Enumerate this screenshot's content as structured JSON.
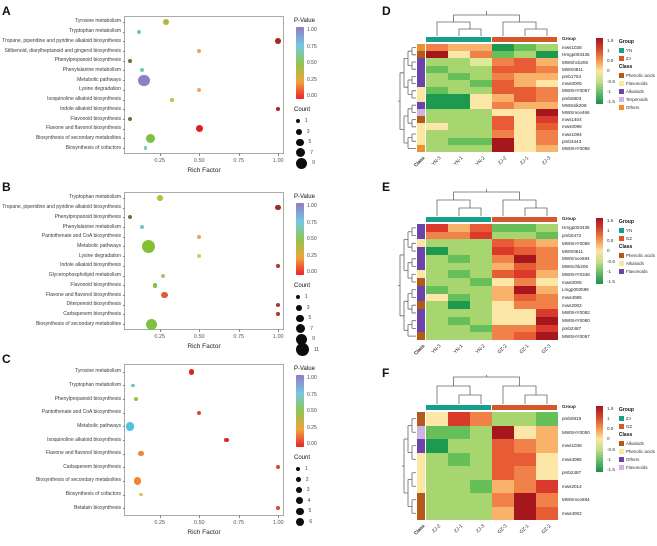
{
  "palette": {
    "dr": "#a5161d",
    "r": "#d93a2b",
    "ro": "#e85c35",
    "o": "#f08148",
    "lo": "#f9b269",
    "ly": "#fce7a8",
    "yg": "#dcea9a",
    "lg": "#a7d671",
    "g": "#67bf5a",
    "dg": "#1d9a50"
  },
  "chart_data": [
    {
      "panel": "A",
      "type": "scatter",
      "subtype": "bubble",
      "xlabel": "Rich Factor",
      "x_ticks": [
        "0.25",
        "0.50",
        "0.75",
        "1.00"
      ],
      "x_tick_values": [
        0.25,
        0.5,
        0.75,
        1.0
      ],
      "x_range": [
        0.03,
        1.03
      ],
      "legend": {
        "pvalue_title": "P-Value",
        "pvalue_ticks": [
          "1.00",
          "0.75",
          "0.50",
          "0.25",
          "0.00"
        ],
        "count_title": "Count",
        "count_items": [
          1,
          3,
          5,
          7,
          9
        ]
      },
      "rows": [
        {
          "pathway": "Tyrosine metabolism",
          "rich_factor": 0.29,
          "count": 3,
          "p_value": 0.45,
          "color": "#b9b73a"
        },
        {
          "pathway": "Tryptophan metabolism",
          "rich_factor": 0.12,
          "count": 1,
          "p_value": 0.75,
          "color": "#66c6c9"
        },
        {
          "pathway": "Tropane, piperidine and pyridine alkaloid biosynthesis",
          "rich_factor": 1.0,
          "count": 3,
          "p_value": 0.02,
          "color": "#9c2b20"
        },
        {
          "pathway": "Stilbenoid, diarylheptanoid and gingerol biosynthesis",
          "rich_factor": 0.5,
          "count": 1,
          "p_value": 0.2,
          "color": "#f0a157"
        },
        {
          "pathway": "Phenylpropanoid biosynthesis",
          "rich_factor": 0.06,
          "count": 1,
          "p_value": 0.5,
          "color": "#6f7046"
        },
        {
          "pathway": "Phenylalanine metabolism",
          "rich_factor": 0.14,
          "count": 1,
          "p_value": 0.75,
          "color": "#6fc6c6"
        },
        {
          "pathway": "Metabolic pathways",
          "rich_factor": 0.15,
          "count": 9,
          "p_value": 1.0,
          "color": "#8c80c9"
        },
        {
          "pathway": "Lysine degradation",
          "rich_factor": 0.5,
          "count": 1,
          "p_value": 0.2,
          "color": "#f2a55c"
        },
        {
          "pathway": "Isoquinoline alkaloid biosynthesis",
          "rich_factor": 0.33,
          "count": 1,
          "p_value": 0.45,
          "color": "#b9c24d"
        },
        {
          "pathway": "Indole alkaloid biosynthesis",
          "rich_factor": 1.0,
          "count": 1,
          "p_value": 0.02,
          "color": "#9c2b20"
        },
        {
          "pathway": "Flavonoid biosynthesis",
          "rich_factor": 0.06,
          "count": 1,
          "p_value": 0.5,
          "color": "#6f7046"
        },
        {
          "pathway": "Flavone and flavonol biosynthesis",
          "rich_factor": 0.5,
          "count": 5,
          "p_value": 0.01,
          "color": "#e0201f"
        },
        {
          "pathway": "Biosynthesis of secondary metabolites",
          "rich_factor": 0.19,
          "count": 7,
          "p_value": 0.5,
          "color": "#7cc142"
        },
        {
          "pathway": "Biosynthesis of cofactors",
          "rich_factor": 0.16,
          "count": 1,
          "p_value": 0.7,
          "color": "#73c9c4"
        }
      ]
    },
    {
      "panel": "B",
      "type": "scatter",
      "subtype": "bubble",
      "xlabel": "Rich Factor",
      "x_ticks": [
        "0.25",
        "0.50",
        "0.75",
        "1.00"
      ],
      "x_tick_values": [
        0.25,
        0.5,
        0.75,
        1.0
      ],
      "x_range": [
        0.03,
        1.03
      ],
      "legend": {
        "pvalue_title": "P-Value",
        "pvalue_ticks": [
          "1.00",
          "0.75",
          "0.50",
          "0.25",
          "0.00"
        ],
        "count_title": "Count",
        "count_items": [
          1,
          3,
          5,
          7,
          9,
          11
        ]
      },
      "rows": [
        {
          "pathway": "Tryptophan metabolism",
          "rich_factor": 0.25,
          "count": 3,
          "p_value": 0.45,
          "color": "#a9c43e"
        },
        {
          "pathway": "Tropane, piperidine and pyridine alkaloid biosynthesis",
          "rich_factor": 1.0,
          "count": 3,
          "p_value": 0.02,
          "color": "#9c2b20"
        },
        {
          "pathway": "Phenylpropanoid biosynthesis",
          "rich_factor": 0.06,
          "count": 1,
          "p_value": 0.5,
          "color": "#6f7046"
        },
        {
          "pathway": "Phenylalanine metabolism",
          "rich_factor": 0.14,
          "count": 1,
          "p_value": 0.75,
          "color": "#6fc6c6"
        },
        {
          "pathway": "Pantothenate and CoA biosynthesis",
          "rich_factor": 0.5,
          "count": 1,
          "p_value": 0.2,
          "color": "#f0a157"
        },
        {
          "pathway": "Metabolic pathways",
          "rich_factor": 0.18,
          "count": 11,
          "p_value": 0.4,
          "color": "#86bf33"
        },
        {
          "pathway": "Lysine degradation",
          "rich_factor": 0.5,
          "count": 1,
          "p_value": 0.5,
          "color": "#b9d16f"
        },
        {
          "pathway": "Indole alkaloid biosynthesis",
          "rich_factor": 1.0,
          "count": 1,
          "p_value": 0.02,
          "color": "#b3372a"
        },
        {
          "pathway": "Glycerophospholipid metabolism",
          "rich_factor": 0.27,
          "count": 1,
          "p_value": 0.45,
          "color": "#c0b964"
        },
        {
          "pathway": "Flavonoid biosynthesis",
          "rich_factor": 0.22,
          "count": 2,
          "p_value": 0.45,
          "color": "#7cc142"
        },
        {
          "pathway": "Flavone and flavonol biosynthesis",
          "rich_factor": 0.28,
          "count": 4,
          "p_value": 0.05,
          "color": "#e2593a"
        },
        {
          "pathway": "Diterpenoid biosynthesis",
          "rich_factor": 1.0,
          "count": 1,
          "p_value": 0.02,
          "color": "#b3372a"
        },
        {
          "pathway": "Carbapenem biosynthesis",
          "rich_factor": 1.0,
          "count": 1,
          "p_value": 0.02,
          "color": "#b3372a"
        },
        {
          "pathway": "Biosynthesis of secondary metabolites",
          "rich_factor": 0.2,
          "count": 9,
          "p_value": 0.4,
          "color": "#7cc142"
        }
      ]
    },
    {
      "panel": "C",
      "type": "scatter",
      "subtype": "bubble",
      "xlabel": "Rich Factor",
      "x_ticks": [
        "0.25",
        "0.50",
        "0.75",
        "1.00"
      ],
      "x_tick_values": [
        0.25,
        0.5,
        0.75,
        1.0
      ],
      "x_range": [
        0.03,
        1.03
      ],
      "legend": {
        "pvalue_title": "P-Value",
        "pvalue_ticks": [
          "1.00",
          "0.75",
          "0.50",
          "0.25",
          "0.00"
        ],
        "count_title": "Count",
        "count_items": [
          1,
          2,
          3,
          4,
          5,
          6
        ]
      },
      "rows": [
        {
          "pathway": "Tyrosine metabolism",
          "rich_factor": 0.45,
          "count": 3,
          "p_value": 0.02,
          "color": "#da2420"
        },
        {
          "pathway": "Tryptophan metabolism",
          "rich_factor": 0.08,
          "count": 1,
          "p_value": 0.7,
          "color": "#62c6c9"
        },
        {
          "pathway": "Phenylpropanoid biosynthesis",
          "rich_factor": 0.1,
          "count": 2,
          "p_value": 0.45,
          "color": "#9cc23c"
        },
        {
          "pathway": "Pantothenate and CoA biosynthesis",
          "rich_factor": 0.5,
          "count": 1,
          "p_value": 0.05,
          "color": "#d94a31"
        },
        {
          "pathway": "Metabolic pathways",
          "rich_factor": 0.06,
          "count": 6,
          "p_value": 0.8,
          "color": "#4ec3e0"
        },
        {
          "pathway": "Isoquinoline alkaloid biosynthesis",
          "rich_factor": 0.67,
          "count": 2,
          "p_value": 0.02,
          "color": "#d92b24"
        },
        {
          "pathway": "Flavone and flavonol biosynthesis",
          "rich_factor": 0.13,
          "count": 3,
          "p_value": 0.15,
          "color": "#ef8635"
        },
        {
          "pathway": "Carbapenem biosynthesis",
          "rich_factor": 1.0,
          "count": 1,
          "p_value": 0.05,
          "color": "#d94a31"
        },
        {
          "pathway": "Biosynthesis of secondary metabolites",
          "rich_factor": 0.11,
          "count": 5,
          "p_value": 0.15,
          "color": "#ef8635"
        },
        {
          "pathway": "Biosynthesis of cofactors",
          "rich_factor": 0.13,
          "count": 1,
          "p_value": 0.35,
          "color": "#e3c44e"
        },
        {
          "pathway": "Betalain biosynthesis",
          "rich_factor": 1.0,
          "count": 1,
          "p_value": 0.05,
          "color": "#d94a31"
        }
      ]
    },
    {
      "panel": "D",
      "type": "heatmap",
      "corner_label": "Class",
      "row_header": "Group",
      "columns": [
        "YN-3",
        "YN-1",
        "YN-2",
        "ZJ-2",
        "ZJ-1",
        "ZJ-3"
      ],
      "groups": [
        {
          "name": "YN",
          "color": "#16a08c",
          "span": 3
        },
        {
          "name": "ZJ",
          "color": "#d4582a",
          "span": 3
        }
      ],
      "scale_ticks": [
        "1.5",
        "1",
        "0.5",
        "0",
        "-0.5",
        "-1",
        "-1.5"
      ],
      "legend_group_title": "Group",
      "legend_class_title": "Class",
      "class_legend": [
        {
          "name": "Phenolic acids",
          "color": "#b3591a"
        },
        {
          "name": "Flavonoids",
          "color": "#f8e6a2"
        },
        {
          "name": "Alkaloids",
          "color": "#6a44a8"
        },
        {
          "name": "Terpenoids",
          "color": "#cdb5dd"
        },
        {
          "name": "Others",
          "color": "#ec8f2e"
        }
      ],
      "rows": [
        "mws1038",
        "Hmgp003435",
        "MWShck206",
        "MWS0811",
        "pmb1754",
        "mws0005",
        "MWSHY0067",
        "pmb0803",
        "MWSslk208",
        "MWSmce466",
        "mws1404",
        "mws0098",
        "mws1094",
        "pmb3443",
        "MWSHY0058"
      ],
      "row_classes": [
        "Others",
        "Phenolic acids",
        "Alkaloids",
        "Alkaloids",
        "Alkaloids",
        "Alkaloids",
        "Flavonoids",
        "Flavonoids",
        "Alkaloids",
        "Terpenoids",
        "Phenolic acids",
        "Flavonoids",
        "Flavonoids",
        "Flavonoids",
        "Others"
      ],
      "cells": [
        [
          "o",
          "lo",
          "lo",
          "dg",
          "g",
          "lg"
        ],
        [
          "dr",
          "ly",
          "o",
          "g",
          "lg",
          "dg"
        ],
        [
          "lg",
          "lg",
          "yg",
          "o",
          "ro",
          "lo"
        ],
        [
          "g",
          "lg",
          "lg",
          "ro",
          "ro",
          "o"
        ],
        [
          "lg",
          "g",
          "lg",
          "o",
          "lo",
          "lo"
        ],
        [
          "lg",
          "lg",
          "g",
          "ro",
          "lo",
          "ly"
        ],
        [
          "g",
          "lg",
          "lg",
          "ro",
          "ro",
          "o"
        ],
        [
          "dg",
          "dg",
          "ly",
          "lo",
          "ro",
          "o"
        ],
        [
          "dg",
          "dg",
          "ly",
          "o",
          "lo",
          "lo"
        ],
        [
          "lg",
          "lg",
          "lg",
          "ly",
          "ly",
          "dr"
        ],
        [
          "lg",
          "lg",
          "lg",
          "ro",
          "ly",
          "r"
        ],
        [
          "ly",
          "lg",
          "lg",
          "ro",
          "ly",
          "ro"
        ],
        [
          "lg",
          "lg",
          "lg",
          "o",
          "ly",
          "o"
        ],
        [
          "lg",
          "g",
          "g",
          "dr",
          "ly",
          "o"
        ],
        [
          "lg",
          "lg",
          "lg",
          "dr",
          "ly",
          "lo"
        ]
      ]
    },
    {
      "panel": "E",
      "type": "heatmap",
      "corner_label": "Class",
      "row_header": "Group",
      "columns": [
        "YN-3",
        "YN-1",
        "YN-2",
        "GZ-2",
        "GZ-1",
        "GZ-3"
      ],
      "groups": [
        {
          "name": "YN",
          "color": "#16a08c",
          "span": 3
        },
        {
          "name": "GZ",
          "color": "#d4582a",
          "span": 3
        }
      ],
      "scale_ticks": [
        "1.5",
        "1",
        "0.5",
        "0",
        "-0.5",
        "-1",
        "-1.5"
      ],
      "legend_group_title": "Group",
      "legend_class_title": "Class",
      "class_legend": [
        {
          "name": "Phenolic acids",
          "color": "#b3591a"
        },
        {
          "name": "Alkaloids",
          "color": "#f8e6a2"
        },
        {
          "name": "Flavonoids",
          "color": "#6a44a8"
        }
      ],
      "rows": [
        "Hmgp003435",
        "pmb0472",
        "MWSHY0058",
        "MWS0811",
        "MWSmce584",
        "MWSchk206",
        "MWSHY0348",
        "mws0005",
        "Lmgp002596",
        "mws4085",
        "mws2002",
        "MWSHY0082",
        "MWSHY0080",
        "pmb2487",
        "MWSHY0067"
      ],
      "row_classes": [
        "Flavonoids",
        "Flavonoids",
        "Alkaloids",
        "Flavonoids",
        "Flavonoids",
        "Flavonoids",
        "Alkaloids",
        "Phenolic acids",
        "Flavonoids",
        "Flavonoids",
        "Phenolic acids",
        "Flavonoids",
        "Flavonoids",
        "Flavonoids",
        "Phenolic acids"
      ],
      "cells": [
        [
          "r",
          "lo",
          "ro",
          "g",
          "g",
          "lg"
        ],
        [
          "o",
          "o",
          "r",
          "lg",
          "lg",
          "g"
        ],
        [
          "lg",
          "lg",
          "lg",
          "ro",
          "o",
          "lo"
        ],
        [
          "dg",
          "lg",
          "lg",
          "r",
          "ro",
          "o"
        ],
        [
          "lg",
          "g",
          "lg",
          "o",
          "dr",
          "o"
        ],
        [
          "lg",
          "lg",
          "lg",
          "lo",
          "ro",
          "o"
        ],
        [
          "lg",
          "g",
          "lg",
          "ro",
          "r",
          "lo"
        ],
        [
          "lg",
          "lg",
          "g",
          "ly",
          "o",
          "ly"
        ],
        [
          "g",
          "lg",
          "lg",
          "lo",
          "dr",
          "lo"
        ],
        [
          "ly",
          "g",
          "lg",
          "lo",
          "ro",
          "o"
        ],
        [
          "lg",
          "dg",
          "lg",
          "ly",
          "o",
          "o"
        ],
        [
          "lg",
          "lg",
          "lg",
          "ly",
          "ly",
          "r"
        ],
        [
          "lg",
          "g",
          "lg",
          "ly",
          "ly",
          "dr"
        ],
        [
          "lg",
          "lg",
          "g",
          "o",
          "o",
          "r"
        ],
        [
          "lg",
          "lg",
          "lg",
          "o",
          "ro",
          "dr"
        ]
      ]
    },
    {
      "panel": "F",
      "type": "heatmap",
      "corner_label": "Class",
      "row_header": "Group",
      "columns": [
        "ZJ-2",
        "ZJ-1",
        "ZJ-3",
        "GZ-3",
        "GZ-1",
        "GZ-2"
      ],
      "groups": [
        {
          "name": "ZJ",
          "color": "#16a08c",
          "span": 3
        },
        {
          "name": "GZ",
          "color": "#d4582a",
          "span": 3
        }
      ],
      "scale_ticks": [
        "1.5",
        "1",
        "0.5",
        "0",
        "-0.5",
        "-1",
        "-1.5"
      ],
      "legend_group_title": "Group",
      "legend_class_title": "Class",
      "class_legend": [
        {
          "name": "Alkaloids",
          "color": "#b3591a"
        },
        {
          "name": "Phenolic acids",
          "color": "#f8e6a2"
        },
        {
          "name": "Others",
          "color": "#6a44a8"
        },
        {
          "name": "Flavonoids",
          "color": "#cdb5dd"
        }
      ],
      "rows": [
        "pmb0819",
        "MWSHY0050",
        "mws1038",
        "mws4085",
        "pmb2487",
        "mws2014",
        "MWSmce584",
        "mws4002"
      ],
      "row_classes": [
        "Alkaloids",
        "Flavonoids",
        "Others",
        "Phenolic acids",
        "Phenolic acids",
        "Phenolic acids",
        "Alkaloids",
        "Alkaloids"
      ],
      "cells": [
        [
          "ly",
          "r",
          "o",
          "lg",
          "lg",
          "g"
        ],
        [
          "g",
          "g",
          "lg",
          "dr",
          "ly",
          "lo"
        ],
        [
          "dg",
          "lg",
          "lg",
          "ro",
          "o",
          "lo"
        ],
        [
          "lg",
          "g",
          "lg",
          "ro",
          "ro",
          "ly"
        ],
        [
          "lg",
          "lg",
          "lg",
          "ro",
          "o",
          "ly"
        ],
        [
          "lg",
          "lg",
          "g",
          "lo",
          "o",
          "r"
        ],
        [
          "lg",
          "lg",
          "lg",
          "o",
          "dr",
          "o"
        ],
        [
          "lg",
          "lg",
          "lg",
          "lo",
          "dr",
          "ro"
        ]
      ]
    }
  ]
}
